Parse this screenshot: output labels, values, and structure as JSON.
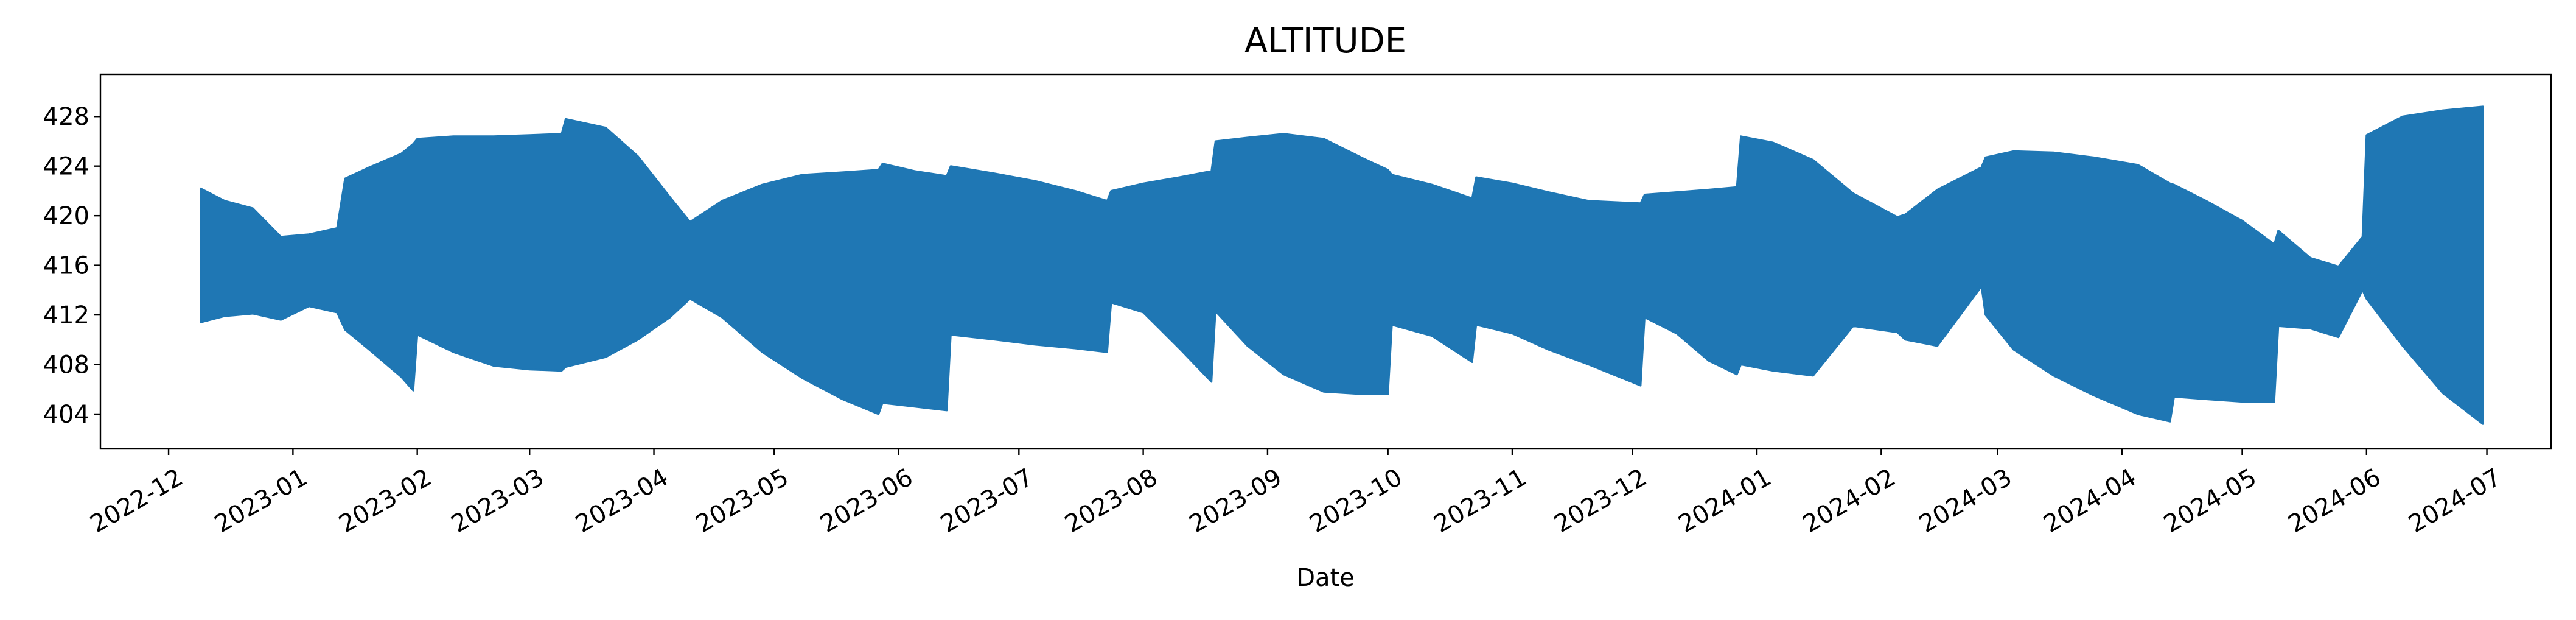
{
  "chart_data": {
    "type": "area",
    "title": "ALTITUDE",
    "xlabel": "Date",
    "ylabel": "",
    "color": "#1f77b4",
    "grid": false,
    "legend": "none",
    "xlim": [
      "2022-11-14",
      "2024-07-17"
    ],
    "ylim": [
      401.2,
      431.4
    ],
    "x_ticks": [
      "2022-12",
      "2023-01",
      "2023-02",
      "2023-03",
      "2023-04",
      "2023-05",
      "2023-06",
      "2023-07",
      "2023-08",
      "2023-09",
      "2023-10",
      "2023-11",
      "2023-12",
      "2024-01",
      "2024-02",
      "2024-03",
      "2024-04",
      "2024-05",
      "2024-06",
      "2024-07"
    ],
    "y_ticks": [
      404,
      408,
      412,
      416,
      420,
      424,
      428
    ],
    "series": [
      {
        "x": [
          "2022-12-09",
          "2022-12-15",
          "2022-12-22",
          "2022-12-29",
          "2023-01-05",
          "2023-01-12",
          "2023-01-14",
          "2023-01-20",
          "2023-01-28",
          "2023-01-31",
          "2023-02-01",
          "2023-02-10",
          "2023-02-20",
          "2023-03-01",
          "2023-03-09",
          "2023-03-10",
          "2023-03-20",
          "2023-03-28",
          "2023-04-05",
          "2023-04-10",
          "2023-04-18",
          "2023-04-28",
          "2023-05-08",
          "2023-05-18",
          "2023-05-27",
          "2023-05-28",
          "2023-06-05",
          "2023-06-13",
          "2023-06-14",
          "2023-06-25",
          "2023-07-05",
          "2023-07-15",
          "2023-07-23",
          "2023-07-24",
          "2023-08-01",
          "2023-08-10",
          "2023-08-18",
          "2023-08-19",
          "2023-08-27",
          "2023-09-05",
          "2023-09-15",
          "2023-09-25",
          "2023-10-01",
          "2023-10-02",
          "2023-10-12",
          "2023-10-22",
          "2023-10-23",
          "2023-11-01",
          "2023-11-10",
          "2023-11-20",
          "2023-12-03",
          "2023-12-04",
          "2023-12-12",
          "2023-12-20",
          "2023-12-27",
          "2023-12-28",
          "2024-01-05",
          "2024-01-15",
          "2024-01-25",
          "2024-02-05",
          "2024-02-07",
          "2024-02-15",
          "2024-02-26",
          "2024-02-27",
          "2024-03-05",
          "2024-03-15",
          "2024-03-25",
          "2024-04-05",
          "2024-04-13",
          "2024-04-14",
          "2024-04-22",
          "2024-05-01",
          "2024-05-09",
          "2024-05-10",
          "2024-05-18",
          "2024-05-25",
          "2024-05-31",
          "2024-06-01",
          "2024-06-10",
          "2024-06-20",
          "2024-06-30"
        ],
        "y_max": [
          422.2,
          421.2,
          420.6,
          418.3,
          418.5,
          419.0,
          423.0,
          423.9,
          425.0,
          425.8,
          426.2,
          426.4,
          426.4,
          426.5,
          426.6,
          427.8,
          427.1,
          424.8,
          421.5,
          419.5,
          421.2,
          422.5,
          423.3,
          423.5,
          423.7,
          424.2,
          423.6,
          423.2,
          424.0,
          423.4,
          422.8,
          422.0,
          421.2,
          422.0,
          422.6,
          423.1,
          423.6,
          426.0,
          426.3,
          426.6,
          426.2,
          424.6,
          423.7,
          423.3,
          422.5,
          421.4,
          423.1,
          422.6,
          421.9,
          421.2,
          421.0,
          421.7,
          421.9,
          422.1,
          422.3,
          426.4,
          425.9,
          424.5,
          421.8,
          419.9,
          420.1,
          422.1,
          423.9,
          424.7,
          425.2,
          425.1,
          424.7,
          424.1,
          422.6,
          422.5,
          421.2,
          419.6,
          417.7,
          418.8,
          416.6,
          415.9,
          418.3,
          426.5,
          428.0,
          428.5,
          428.8
        ],
        "y_min": [
          411.4,
          411.9,
          412.1,
          411.6,
          412.7,
          412.2,
          410.8,
          409.2,
          407.0,
          405.9,
          410.4,
          409.0,
          407.9,
          407.6,
          407.5,
          407.8,
          408.6,
          410.0,
          411.8,
          413.3,
          411.8,
          409.0,
          406.9,
          405.2,
          404.0,
          404.9,
          404.6,
          404.3,
          410.4,
          410.0,
          409.6,
          409.3,
          409.0,
          413.0,
          412.2,
          409.3,
          406.6,
          412.3,
          409.5,
          407.2,
          405.8,
          405.6,
          405.6,
          411.2,
          410.3,
          408.2,
          411.2,
          410.5,
          409.2,
          408.0,
          406.3,
          411.8,
          410.5,
          408.3,
          407.2,
          408.0,
          407.5,
          407.1,
          411.1,
          410.6,
          410.0,
          409.5,
          414.3,
          412.0,
          409.2,
          407.1,
          405.5,
          404.0,
          403.4,
          405.4,
          405.2,
          405.0,
          405.0,
          411.1,
          410.9,
          410.2,
          414.0,
          413.3,
          409.5,
          405.7,
          403.2
        ]
      }
    ]
  }
}
